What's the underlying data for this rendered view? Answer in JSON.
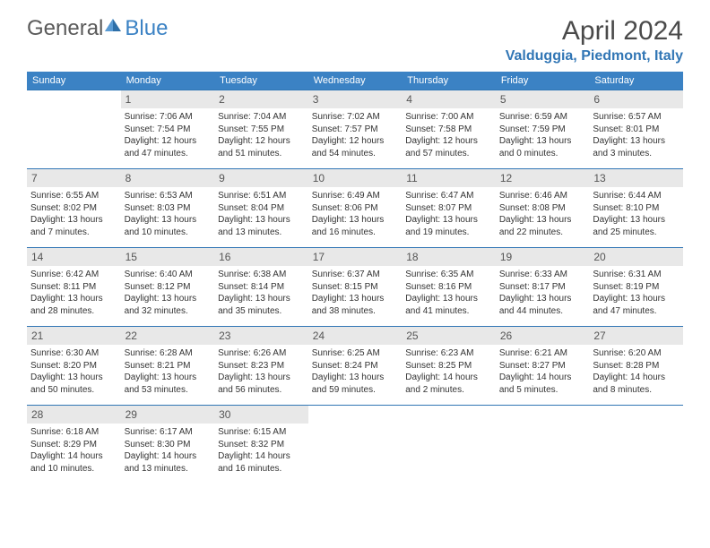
{
  "logo": {
    "general": "General",
    "blue": "Blue"
  },
  "title": "April 2024",
  "location": "Valduggia, Piedmont, Italy",
  "colors": {
    "header_bg": "#3b82c4",
    "header_text": "#ffffff",
    "border": "#3176b5",
    "daynum_bg": "#e8e8e8",
    "text": "#333333",
    "logo_gray": "#5a5a5a",
    "logo_blue": "#3b82c4",
    "location_color": "#3176b5"
  },
  "day_headers": [
    "Sunday",
    "Monday",
    "Tuesday",
    "Wednesday",
    "Thursday",
    "Friday",
    "Saturday"
  ],
  "weeks": [
    [
      null,
      {
        "n": "1",
        "sr": "7:06 AM",
        "ss": "7:54 PM",
        "dl": "12 hours and 47 minutes."
      },
      {
        "n": "2",
        "sr": "7:04 AM",
        "ss": "7:55 PM",
        "dl": "12 hours and 51 minutes."
      },
      {
        "n": "3",
        "sr": "7:02 AM",
        "ss": "7:57 PM",
        "dl": "12 hours and 54 minutes."
      },
      {
        "n": "4",
        "sr": "7:00 AM",
        "ss": "7:58 PM",
        "dl": "12 hours and 57 minutes."
      },
      {
        "n": "5",
        "sr": "6:59 AM",
        "ss": "7:59 PM",
        "dl": "13 hours and 0 minutes."
      },
      {
        "n": "6",
        "sr": "6:57 AM",
        "ss": "8:01 PM",
        "dl": "13 hours and 3 minutes."
      }
    ],
    [
      {
        "n": "7",
        "sr": "6:55 AM",
        "ss": "8:02 PM",
        "dl": "13 hours and 7 minutes."
      },
      {
        "n": "8",
        "sr": "6:53 AM",
        "ss": "8:03 PM",
        "dl": "13 hours and 10 minutes."
      },
      {
        "n": "9",
        "sr": "6:51 AM",
        "ss": "8:04 PM",
        "dl": "13 hours and 13 minutes."
      },
      {
        "n": "10",
        "sr": "6:49 AM",
        "ss": "8:06 PM",
        "dl": "13 hours and 16 minutes."
      },
      {
        "n": "11",
        "sr": "6:47 AM",
        "ss": "8:07 PM",
        "dl": "13 hours and 19 minutes."
      },
      {
        "n": "12",
        "sr": "6:46 AM",
        "ss": "8:08 PM",
        "dl": "13 hours and 22 minutes."
      },
      {
        "n": "13",
        "sr": "6:44 AM",
        "ss": "8:10 PM",
        "dl": "13 hours and 25 minutes."
      }
    ],
    [
      {
        "n": "14",
        "sr": "6:42 AM",
        "ss": "8:11 PM",
        "dl": "13 hours and 28 minutes."
      },
      {
        "n": "15",
        "sr": "6:40 AM",
        "ss": "8:12 PM",
        "dl": "13 hours and 32 minutes."
      },
      {
        "n": "16",
        "sr": "6:38 AM",
        "ss": "8:14 PM",
        "dl": "13 hours and 35 minutes."
      },
      {
        "n": "17",
        "sr": "6:37 AM",
        "ss": "8:15 PM",
        "dl": "13 hours and 38 minutes."
      },
      {
        "n": "18",
        "sr": "6:35 AM",
        "ss": "8:16 PM",
        "dl": "13 hours and 41 minutes."
      },
      {
        "n": "19",
        "sr": "6:33 AM",
        "ss": "8:17 PM",
        "dl": "13 hours and 44 minutes."
      },
      {
        "n": "20",
        "sr": "6:31 AM",
        "ss": "8:19 PM",
        "dl": "13 hours and 47 minutes."
      }
    ],
    [
      {
        "n": "21",
        "sr": "6:30 AM",
        "ss": "8:20 PM",
        "dl": "13 hours and 50 minutes."
      },
      {
        "n": "22",
        "sr": "6:28 AM",
        "ss": "8:21 PM",
        "dl": "13 hours and 53 minutes."
      },
      {
        "n": "23",
        "sr": "6:26 AM",
        "ss": "8:23 PM",
        "dl": "13 hours and 56 minutes."
      },
      {
        "n": "24",
        "sr": "6:25 AM",
        "ss": "8:24 PM",
        "dl": "13 hours and 59 minutes."
      },
      {
        "n": "25",
        "sr": "6:23 AM",
        "ss": "8:25 PM",
        "dl": "14 hours and 2 minutes."
      },
      {
        "n": "26",
        "sr": "6:21 AM",
        "ss": "8:27 PM",
        "dl": "14 hours and 5 minutes."
      },
      {
        "n": "27",
        "sr": "6:20 AM",
        "ss": "8:28 PM",
        "dl": "14 hours and 8 minutes."
      }
    ],
    [
      {
        "n": "28",
        "sr": "6:18 AM",
        "ss": "8:29 PM",
        "dl": "14 hours and 10 minutes."
      },
      {
        "n": "29",
        "sr": "6:17 AM",
        "ss": "8:30 PM",
        "dl": "14 hours and 13 minutes."
      },
      {
        "n": "30",
        "sr": "6:15 AM",
        "ss": "8:32 PM",
        "dl": "14 hours and 16 minutes."
      },
      null,
      null,
      null,
      null
    ]
  ],
  "labels": {
    "sunrise": "Sunrise:",
    "sunset": "Sunset:",
    "daylight": "Daylight:"
  }
}
